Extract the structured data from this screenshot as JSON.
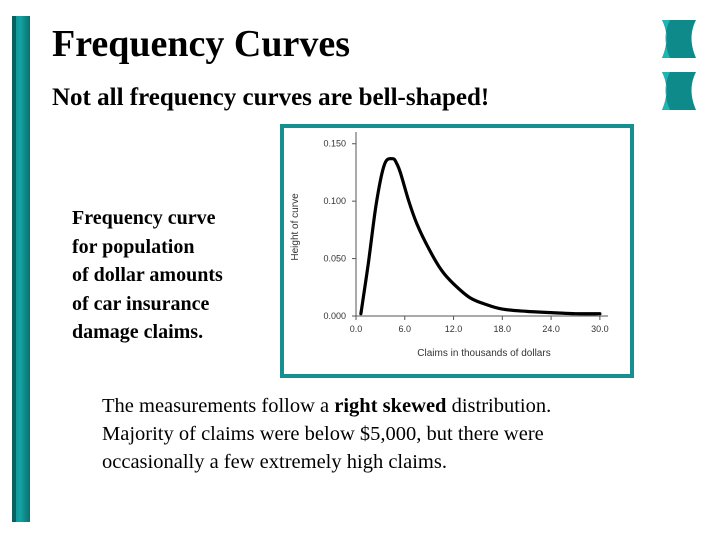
{
  "slide": {
    "title": "Frequency Curves",
    "subtitle": "Not all frequency curves are bell-shaped!",
    "side_caption": [
      "Frequency curve",
      "for population",
      "of dollar amounts",
      "of car insurance",
      "damage claims."
    ],
    "note": {
      "line1_pre": "The measurements follow a ",
      "line1_bold": "right skewed",
      "line1_post": " distribution.",
      "line2": "Majority of claims were below $5,000, but there were",
      "line3": "occasionally a few extremely high claims."
    }
  },
  "colors": {
    "accent": "#158f8f",
    "curve": "#000000"
  },
  "chart_data": {
    "type": "line",
    "xlabel": "Claims in thousands of dollars",
    "ylabel": "Height of curve",
    "xlim": [
      0,
      31
    ],
    "ylim": [
      0,
      0.155
    ],
    "x_ticks": [
      "0.0",
      "6.0",
      "12.0",
      "18.0",
      "24.0",
      "30.0"
    ],
    "x_tick_values": [
      0,
      6,
      12,
      18,
      24,
      30
    ],
    "y_ticks": [
      "0.000",
      "0.050",
      "0.100",
      "0.150"
    ],
    "y_tick_values": [
      0,
      0.05,
      0.1,
      0.15
    ],
    "series": [
      {
        "x": [
          0.6,
          1.5,
          2.5,
          3.5,
          4.5,
          5.0,
          5.5,
          6.5,
          7.5,
          9.0,
          10.5,
          12.0,
          14.0,
          16.0,
          18.0,
          21.0,
          24.0,
          27.0,
          30.0
        ],
        "y": [
          0.002,
          0.045,
          0.098,
          0.132,
          0.137,
          0.133,
          0.124,
          0.1,
          0.08,
          0.058,
          0.04,
          0.028,
          0.016,
          0.01,
          0.006,
          0.004,
          0.003,
          0.002,
          0.002
        ]
      }
    ]
  }
}
